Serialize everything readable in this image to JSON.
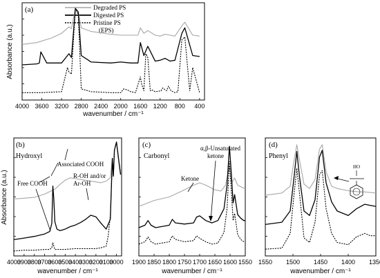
{
  "chart_data": [
    {
      "type": "line",
      "panel_label": "(a)",
      "xlabel": "wavenumber / cm⁻¹",
      "ylabel": "Absorbance (a.u.)",
      "xlim": [
        4000,
        300
      ],
      "x_reversed": true,
      "x_ticks": [
        "4000",
        "3600",
        "3200",
        "2800",
        "2400",
        "2000",
        "1600",
        "1200",
        "800",
        "400"
      ],
      "legend": [
        "Degraded PS",
        "Digested PS",
        "Pristine PS",
        "(EPS)"
      ],
      "legend_position": "top-center",
      "series": [
        {
          "name": "Degraded PS",
          "style": "gray-solid",
          "x": [
            4000,
            3700,
            3400,
            3200,
            3050,
            3000,
            2920,
            2860,
            2800,
            2600,
            2200,
            2000,
            1750,
            1650,
            1600,
            1530,
            1450,
            1300,
            1200,
            1100,
            1000,
            900,
            760,
            700,
            540,
            400
          ],
          "y": [
            0.6,
            0.62,
            0.67,
            0.72,
            0.79,
            0.77,
            0.99,
            0.95,
            0.78,
            0.74,
            0.71,
            0.7,
            0.7,
            0.7,
            0.78,
            0.72,
            0.75,
            0.7,
            0.69,
            0.71,
            0.7,
            0.69,
            0.8,
            0.84,
            0.7,
            0.69
          ]
        },
        {
          "name": "Digested PS",
          "style": "black-solid",
          "x": [
            4000,
            3700,
            3650,
            3620,
            3500,
            3200,
            3050,
            3000,
            2920,
            2860,
            2800,
            2600,
            2200,
            2000,
            1800,
            1650,
            1600,
            1530,
            1450,
            1300,
            1200,
            1100,
            1000,
            900,
            760,
            700,
            540,
            400
          ],
          "y": [
            0.38,
            0.39,
            0.4,
            0.52,
            0.4,
            0.4,
            0.5,
            0.46,
            0.99,
            0.95,
            0.48,
            0.41,
            0.4,
            0.41,
            0.4,
            0.4,
            0.62,
            0.48,
            0.58,
            0.42,
            0.43,
            0.45,
            0.42,
            0.43,
            0.72,
            0.78,
            0.48,
            0.47
          ]
        },
        {
          "name": "Pristine PS (EPS)",
          "style": "black-dotted",
          "x": [
            4000,
            3800,
            3600,
            3200,
            3080,
            3050,
            3000,
            2920,
            2860,
            2800,
            2600,
            2200,
            2000,
            1940,
            1870,
            1800,
            1700,
            1600,
            1580,
            1530,
            1490,
            1450,
            1400,
            1370,
            1300,
            1180,
            1150,
            1070,
            1030,
            980,
            900,
            840,
            760,
            700,
            600,
            540,
            400
          ],
          "y": [
            0.08,
            0.08,
            0.08,
            0.09,
            0.35,
            0.3,
            0.28,
            0.99,
            0.92,
            0.12,
            0.09,
            0.08,
            0.08,
            0.12,
            0.11,
            0.09,
            0.08,
            0.25,
            0.18,
            0.1,
            0.5,
            0.46,
            0.1,
            0.11,
            0.09,
            0.1,
            0.13,
            0.1,
            0.15,
            0.1,
            0.08,
            0.09,
            0.65,
            0.68,
            0.1,
            0.35,
            0.08
          ]
        }
      ]
    },
    {
      "type": "line",
      "panel_label": "(b)",
      "title": "Hydroxyl",
      "xlabel": "wavenumber / cm⁻¹",
      "ylabel": "Absorbance (a.u.)",
      "xlim": [
        4000,
        2950
      ],
      "x_reversed": true,
      "x_ticks": [
        "4000",
        "3900",
        "3800",
        "3700",
        "3600",
        "3500",
        "3400",
        "3300",
        "3200",
        "3100",
        "3000"
      ],
      "annotations": [
        "Associated COOH",
        "R-OH and/or",
        "Ar-OH",
        "Free COOH"
      ],
      "series": [
        {
          "name": "Degraded PS",
          "style": "gray-solid",
          "x": [
            4000,
            3900,
            3800,
            3700,
            3650,
            3600,
            3550,
            3500,
            3450,
            3400,
            3300,
            3200,
            3150,
            3100,
            3060,
            3040,
            3030,
            3020,
            3000,
            2980,
            2960
          ],
          "y": [
            0.7,
            0.71,
            0.72,
            0.76,
            0.79,
            0.82,
            0.88,
            0.93,
            0.96,
            0.95,
            0.93,
            0.91,
            0.9,
            0.92,
            0.96,
            1.2,
            0.98,
            1.3,
            1.4,
            1.2,
            1.0
          ]
        },
        {
          "name": "Digested PS",
          "style": "black-solid",
          "x": [
            4000,
            3900,
            3800,
            3700,
            3650,
            3630,
            3620,
            3610,
            3600,
            3580,
            3550,
            3500,
            3450,
            3400,
            3350,
            3300,
            3250,
            3200,
            3150,
            3100,
            3060,
            3040,
            3030,
            3020,
            3000,
            2980,
            2960
          ],
          "y": [
            0.2,
            0.22,
            0.24,
            0.27,
            0.3,
            0.4,
            0.86,
            0.7,
            0.42,
            0.33,
            0.31,
            0.33,
            0.36,
            0.38,
            0.41,
            0.45,
            0.5,
            0.48,
            0.4,
            0.33,
            0.45,
            1.2,
            0.98,
            1.3,
            1.4,
            1.2,
            1.0
          ]
        },
        {
          "name": "Pristine PS (EPS)",
          "style": "black-dotted",
          "x": [
            4000,
            3900,
            3800,
            3700,
            3650,
            3630,
            3620,
            3610,
            3600,
            3550,
            3500,
            3400,
            3300,
            3200,
            3150,
            3100,
            3080,
            3060,
            3040,
            3030,
            3020,
            3000,
            2980,
            2960
          ],
          "y": [
            0.06,
            0.07,
            0.07,
            0.08,
            0.08,
            0.1,
            0.16,
            0.12,
            0.08,
            0.08,
            0.08,
            0.09,
            0.09,
            0.09,
            0.1,
            0.12,
            0.25,
            0.5,
            1.2,
            0.98,
            1.3,
            1.4,
            1.2,
            1.0
          ]
        }
      ]
    },
    {
      "type": "line",
      "panel_label": "(c)",
      "title": "Carbonyl",
      "xlabel": "wavenumber / cm⁻¹",
      "xlim": [
        1900,
        1550
      ],
      "x_reversed": true,
      "x_ticks": [
        "1900",
        "1850",
        "1800",
        "1750",
        "1700",
        "1650",
        "1600",
        "1550"
      ],
      "annotations": [
        "α,β-Unsaturated",
        "ketone",
        "Ketone"
      ],
      "series": [
        {
          "name": "Degraded PS",
          "style": "gray-solid",
          "x": [
            1900,
            1870,
            1850,
            1800,
            1750,
            1720,
            1700,
            1680,
            1650,
            1630,
            1615,
            1602,
            1595,
            1585,
            1575,
            1560,
            1550
          ],
          "y": [
            0.42,
            0.45,
            0.47,
            0.5,
            0.56,
            0.6,
            0.62,
            0.6,
            0.56,
            0.55,
            0.6,
            0.76,
            0.62,
            0.66,
            0.6,
            0.58,
            0.57
          ]
        },
        {
          "name": "Digested PS",
          "style": "black-solid",
          "x": [
            1900,
            1880,
            1870,
            1860,
            1845,
            1800,
            1790,
            1780,
            1750,
            1720,
            1710,
            1700,
            1680,
            1660,
            1640,
            1620,
            1610,
            1602,
            1596,
            1590,
            1585,
            1575,
            1565,
            1555,
            1550
          ],
          "y": [
            0.24,
            0.26,
            0.3,
            0.26,
            0.24,
            0.26,
            0.31,
            0.28,
            0.27,
            0.28,
            0.33,
            0.34,
            0.3,
            0.28,
            0.3,
            0.4,
            0.6,
            0.93,
            0.7,
            0.45,
            0.52,
            0.35,
            0.32,
            0.3,
            0.3
          ]
        },
        {
          "name": "Pristine PS (EPS)",
          "style": "black-dotted",
          "x": [
            1900,
            1880,
            1870,
            1860,
            1845,
            1800,
            1790,
            1780,
            1750,
            1720,
            1710,
            1700,
            1680,
            1660,
            1640,
            1620,
            1610,
            1602,
            1596,
            1590,
            1585,
            1575,
            1565,
            1555,
            1550
          ],
          "y": [
            0.1,
            0.12,
            0.16,
            0.12,
            0.1,
            0.12,
            0.17,
            0.14,
            0.12,
            0.13,
            0.17,
            0.15,
            0.12,
            0.1,
            0.11,
            0.2,
            0.4,
            0.8,
            0.55,
            0.3,
            0.36,
            0.18,
            0.14,
            0.12,
            0.12
          ]
        }
      ]
    },
    {
      "type": "line",
      "panel_label": "(d)",
      "title": "Phenyl",
      "xlabel": "wavenumber / cm⁻¹",
      "xlim": [
        1550,
        1350
      ],
      "x_reversed": true,
      "x_ticks": [
        "1550",
        "1500",
        "1450",
        "1400",
        "1350"
      ],
      "annotations": [
        "HO"
      ],
      "series": [
        {
          "name": "Degraded PS",
          "style": "gray-solid",
          "x": [
            1550,
            1520,
            1505,
            1498,
            1493,
            1488,
            1480,
            1470,
            1460,
            1452,
            1447,
            1440,
            1430,
            1420,
            1400,
            1380,
            1370,
            1350
          ],
          "y": [
            0.54,
            0.56,
            0.62,
            0.85,
            0.99,
            0.85,
            0.64,
            0.6,
            0.68,
            0.95,
            0.99,
            0.75,
            0.62,
            0.6,
            0.58,
            0.57,
            0.57,
            0.56
          ]
        },
        {
          "name": "Digested PS",
          "style": "black-solid",
          "x": [
            1550,
            1520,
            1505,
            1498,
            1493,
            1488,
            1480,
            1470,
            1460,
            1452,
            1447,
            1440,
            1430,
            1420,
            1400,
            1385,
            1370,
            1360,
            1350
          ],
          "y": [
            0.28,
            0.3,
            0.4,
            0.7,
            0.93,
            0.7,
            0.4,
            0.36,
            0.5,
            0.88,
            0.94,
            0.65,
            0.48,
            0.4,
            0.36,
            0.42,
            0.46,
            0.45,
            0.44
          ]
        },
        {
          "name": "Pristine PS (EPS)",
          "style": "black-dotted",
          "x": [
            1550,
            1520,
            1505,
            1498,
            1493,
            1488,
            1480,
            1470,
            1460,
            1452,
            1447,
            1440,
            1430,
            1420,
            1400,
            1385,
            1370,
            1360,
            1350
          ],
          "y": [
            0.06,
            0.07,
            0.2,
            0.55,
            0.78,
            0.55,
            0.16,
            0.12,
            0.3,
            0.72,
            0.76,
            0.42,
            0.2,
            0.12,
            0.1,
            0.17,
            0.2,
            0.18,
            0.18
          ]
        }
      ]
    }
  ]
}
